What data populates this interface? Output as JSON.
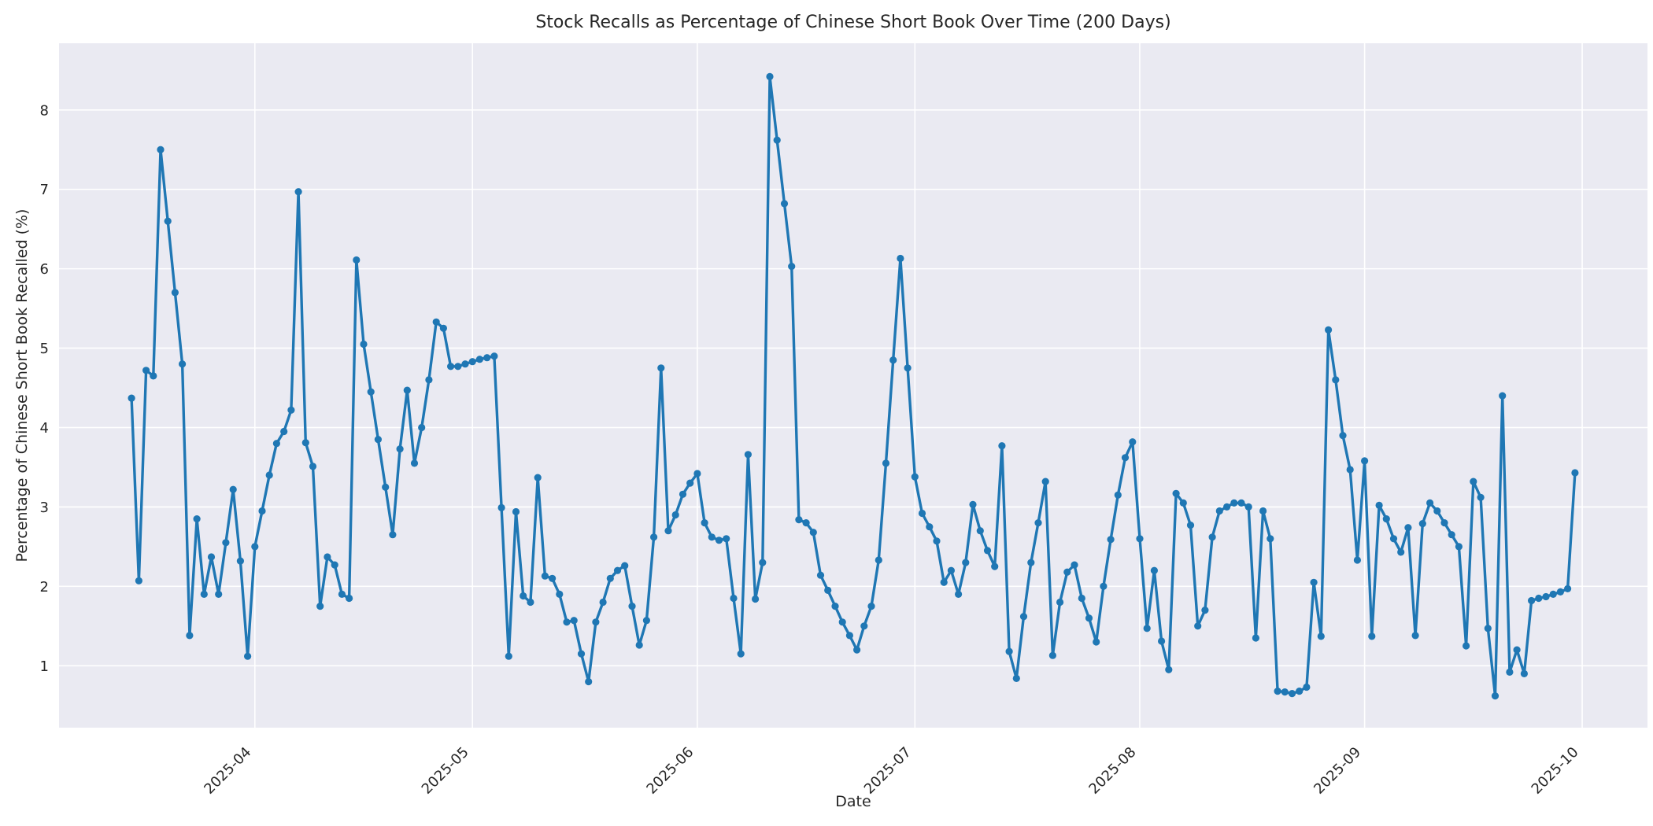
{
  "figure": {
    "title": "Stock Recalls as Percentage of Chinese Short Book Over Time (200 Days)",
    "xlabel": "Date",
    "ylabel": "Percentage of Chinese Short Book Recalled (%)",
    "background_color": "#ffffff",
    "plot_background_color": "#eaeaf2",
    "grid_color": "#ffffff",
    "line_color": "#1f77b4",
    "text_color": "#262626"
  },
  "chart_data": {
    "type": "line",
    "title": "Stock Recalls as Percentage of Chinese Short Book Over Time (200 Days)",
    "xlabel": "Date",
    "ylabel": "Percentage of Chinese Short Book Recalled (%)",
    "grid": true,
    "legend": false,
    "marker": "circle",
    "n_points": 200,
    "start_date": "2025-03-15",
    "end_date": "2025-09-30",
    "frequency": "daily",
    "ylim": [
      0.22,
      8.84
    ],
    "y_ticks": [
      1,
      2,
      3,
      4,
      5,
      6,
      7,
      8
    ],
    "x_tick_labels": [
      "2025-04",
      "2025-05",
      "2025-06",
      "2025-07",
      "2025-08",
      "2025-09",
      "2025-10"
    ],
    "x_tick_day_offsets": [
      17,
      47,
      78,
      108,
      139,
      170,
      200
    ],
    "x_margin_days": 10,
    "series": [
      {
        "name": "Percentage of Chinese Short Book Recalled",
        "values": [
          4.37,
          2.07,
          4.72,
          4.65,
          7.5,
          6.6,
          5.7,
          4.8,
          1.38,
          2.85,
          1.9,
          2.37,
          1.9,
          2.55,
          3.22,
          2.32,
          1.12,
          2.5,
          2.95,
          3.4,
          3.8,
          3.95,
          4.22,
          6.97,
          3.81,
          3.51,
          1.75,
          2.37,
          2.27,
          1.9,
          1.85,
          6.11,
          5.05,
          4.45,
          3.85,
          3.25,
          2.65,
          3.73,
          4.47,
          3.55,
          4.0,
          4.6,
          5.33,
          5.25,
          4.77,
          4.77,
          4.8,
          4.83,
          4.86,
          4.88,
          4.9,
          2.99,
          1.12,
          2.94,
          1.88,
          1.8,
          3.37,
          2.13,
          2.1,
          1.9,
          1.55,
          1.57,
          1.15,
          0.8,
          1.55,
          1.8,
          2.1,
          2.2,
          2.26,
          1.75,
          1.26,
          1.57,
          2.62,
          4.75,
          2.7,
          2.9,
          3.16,
          3.3,
          3.42,
          2.8,
          2.62,
          2.58,
          2.6,
          1.85,
          1.15,
          3.66,
          1.84,
          2.3,
          8.42,
          7.62,
          6.82,
          6.03,
          2.84,
          2.8,
          2.68,
          2.14,
          1.95,
          1.75,
          1.55,
          1.38,
          1.2,
          1.5,
          1.75,
          2.33,
          3.55,
          4.85,
          6.13,
          4.75,
          3.38,
          2.92,
          2.75,
          2.57,
          2.05,
          2.2,
          1.9,
          2.3,
          3.03,
          2.7,
          2.45,
          2.25,
          3.77,
          1.18,
          0.84,
          1.62,
          2.3,
          2.8,
          3.32,
          1.13,
          1.8,
          2.18,
          2.27,
          1.85,
          1.6,
          1.3,
          2.0,
          2.59,
          3.15,
          3.62,
          3.82,
          2.6,
          1.47,
          2.2,
          1.31,
          0.95,
          3.17,
          3.05,
          2.77,
          1.5,
          1.7,
          2.62,
          2.95,
          3.0,
          3.05,
          3.05,
          3.0,
          1.35,
          2.95,
          2.6,
          0.68,
          0.67,
          0.65,
          0.68,
          0.73,
          2.05,
          1.37,
          5.23,
          4.6,
          3.9,
          3.47,
          2.33,
          3.58,
          1.37,
          3.02,
          2.85,
          2.6,
          2.43,
          2.74,
          1.38,
          2.79,
          3.05,
          2.95,
          2.8,
          2.65,
          2.5,
          1.25,
          3.32,
          3.12,
          1.47,
          0.62,
          4.4,
          0.92,
          1.2,
          0.9,
          1.82,
          1.85,
          1.87,
          1.9,
          1.93,
          1.97,
          3.43
        ]
      }
    ]
  }
}
